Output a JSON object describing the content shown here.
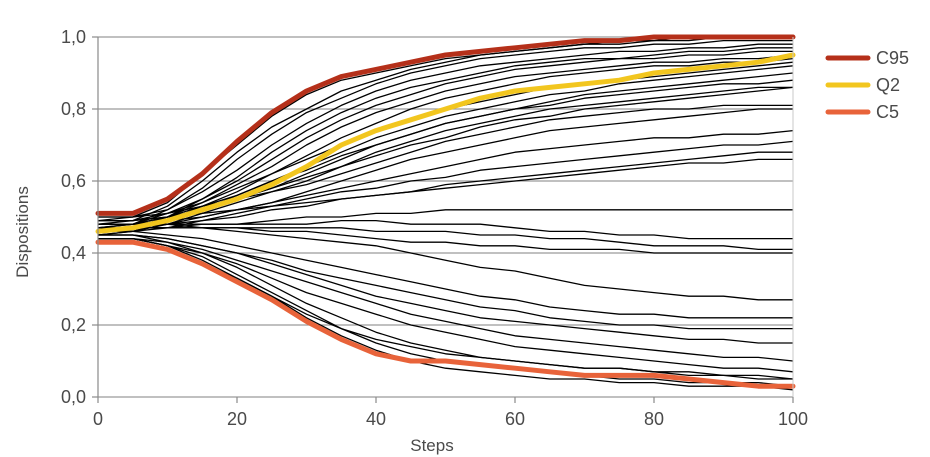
{
  "chart_data": {
    "type": "line",
    "xlabel": "Steps",
    "ylabel": "Dispositions",
    "xlim": [
      0,
      100
    ],
    "ylim": [
      0.0,
      1.0
    ],
    "x_ticks": [
      "0",
      "20",
      "40",
      "60",
      "80",
      "100"
    ],
    "y_ticks": [
      "0,0",
      "0,2",
      "0,4",
      "0,6",
      "0,8",
      "1,0"
    ],
    "grid": "horizontal",
    "legend_position": "right",
    "x": [
      0,
      5,
      10,
      15,
      20,
      25,
      30,
      35,
      40,
      45,
      50,
      55,
      60,
      65,
      70,
      75,
      80,
      85,
      90,
      95,
      100
    ],
    "series": [
      {
        "name": "C95",
        "color": "#b5301a",
        "values": [
          0.51,
          0.51,
          0.55,
          0.62,
          0.71,
          0.79,
          0.85,
          0.89,
          0.91,
          0.93,
          0.95,
          0.96,
          0.97,
          0.98,
          0.99,
          0.99,
          1.0,
          1.0,
          1.0,
          1.0,
          1.0
        ]
      },
      {
        "name": "Q2",
        "color": "#f2c61f",
        "values": [
          0.46,
          0.47,
          0.49,
          0.52,
          0.55,
          0.59,
          0.64,
          0.7,
          0.74,
          0.77,
          0.8,
          0.83,
          0.85,
          0.86,
          0.87,
          0.88,
          0.9,
          0.91,
          0.92,
          0.93,
          0.95
        ]
      },
      {
        "name": "C5",
        "color": "#e8633a",
        "values": [
          0.43,
          0.43,
          0.41,
          0.37,
          0.32,
          0.27,
          0.21,
          0.16,
          0.12,
          0.1,
          0.1,
          0.09,
          0.08,
          0.07,
          0.06,
          0.06,
          0.06,
          0.05,
          0.04,
          0.03,
          0.03
        ]
      },
      {
        "values": [
          0.5,
          0.5,
          0.54,
          0.62,
          0.7,
          0.78,
          0.84,
          0.88,
          0.9,
          0.92,
          0.94,
          0.95,
          0.96,
          0.97,
          0.98,
          0.99,
          0.99,
          1.0,
          1.0,
          1.0,
          1.0
        ]
      },
      {
        "values": [
          0.48,
          0.49,
          0.53,
          0.6,
          0.68,
          0.75,
          0.8,
          0.85,
          0.88,
          0.91,
          0.93,
          0.95,
          0.96,
          0.97,
          0.98,
          0.98,
          0.99,
          0.99,
          1.0,
          1.0,
          1.0
        ]
      },
      {
        "values": [
          0.47,
          0.48,
          0.52,
          0.58,
          0.66,
          0.73,
          0.79,
          0.83,
          0.87,
          0.9,
          0.92,
          0.94,
          0.95,
          0.96,
          0.97,
          0.97,
          0.98,
          0.98,
          0.99,
          0.99,
          0.99
        ]
      },
      {
        "values": [
          0.49,
          0.5,
          0.52,
          0.57,
          0.63,
          0.7,
          0.76,
          0.81,
          0.85,
          0.88,
          0.9,
          0.92,
          0.93,
          0.94,
          0.95,
          0.96,
          0.96,
          0.97,
          0.97,
          0.98,
          0.98
        ]
      },
      {
        "values": [
          0.46,
          0.47,
          0.5,
          0.55,
          0.61,
          0.68,
          0.74,
          0.79,
          0.83,
          0.86,
          0.88,
          0.9,
          0.92,
          0.93,
          0.94,
          0.94,
          0.95,
          0.96,
          0.96,
          0.97,
          0.97
        ]
      },
      {
        "values": [
          0.48,
          0.48,
          0.51,
          0.55,
          0.6,
          0.66,
          0.72,
          0.77,
          0.81,
          0.84,
          0.87,
          0.89,
          0.91,
          0.92,
          0.93,
          0.94,
          0.94,
          0.95,
          0.95,
          0.96,
          0.96
        ]
      },
      {
        "values": [
          0.47,
          0.48,
          0.5,
          0.54,
          0.59,
          0.64,
          0.7,
          0.75,
          0.79,
          0.82,
          0.85,
          0.87,
          0.89,
          0.9,
          0.91,
          0.92,
          0.93,
          0.93,
          0.94,
          0.94,
          0.95
        ]
      },
      {
        "values": [
          0.45,
          0.46,
          0.49,
          0.53,
          0.57,
          0.62,
          0.67,
          0.72,
          0.76,
          0.8,
          0.83,
          0.85,
          0.87,
          0.89,
          0.9,
          0.91,
          0.92,
          0.92,
          0.93,
          0.93,
          0.94
        ]
      },
      {
        "values": [
          0.49,
          0.49,
          0.51,
          0.54,
          0.58,
          0.62,
          0.66,
          0.7,
          0.74,
          0.77,
          0.8,
          0.82,
          0.84,
          0.86,
          0.87,
          0.88,
          0.89,
          0.9,
          0.91,
          0.92,
          0.93
        ]
      },
      {
        "values": [
          0.46,
          0.47,
          0.49,
          0.52,
          0.56,
          0.6,
          0.64,
          0.68,
          0.72,
          0.75,
          0.78,
          0.8,
          0.82,
          0.84,
          0.85,
          0.87,
          0.88,
          0.89,
          0.9,
          0.91,
          0.92
        ]
      },
      {
        "values": [
          0.48,
          0.48,
          0.5,
          0.53,
          0.56,
          0.6,
          0.63,
          0.67,
          0.7,
          0.73,
          0.76,
          0.78,
          0.8,
          0.82,
          0.84,
          0.85,
          0.86,
          0.87,
          0.88,
          0.89,
          0.9
        ]
      },
      {
        "values": [
          0.47,
          0.47,
          0.49,
          0.52,
          0.55,
          0.58,
          0.62,
          0.66,
          0.7,
          0.73,
          0.76,
          0.78,
          0.8,
          0.81,
          0.83,
          0.84,
          0.85,
          0.86,
          0.87,
          0.87,
          0.88
        ]
      },
      {
        "values": [
          0.45,
          0.46,
          0.48,
          0.51,
          0.54,
          0.57,
          0.6,
          0.64,
          0.68,
          0.71,
          0.74,
          0.76,
          0.78,
          0.8,
          0.81,
          0.82,
          0.83,
          0.84,
          0.85,
          0.86,
          0.86
        ]
      },
      {
        "values": [
          0.49,
          0.49,
          0.5,
          0.52,
          0.55,
          0.58,
          0.61,
          0.64,
          0.67,
          0.7,
          0.72,
          0.75,
          0.77,
          0.78,
          0.8,
          0.81,
          0.82,
          0.83,
          0.84,
          0.85,
          0.86
        ]
      },
      {
        "values": [
          0.5,
          0.5,
          0.51,
          0.53,
          0.55,
          0.57,
          0.59,
          0.62,
          0.65,
          0.68,
          0.71,
          0.73,
          0.75,
          0.77,
          0.78,
          0.79,
          0.8,
          0.8,
          0.81,
          0.81,
          0.81
        ]
      },
      {
        "values": [
          0.47,
          0.47,
          0.48,
          0.5,
          0.52,
          0.54,
          0.57,
          0.6,
          0.63,
          0.66,
          0.68,
          0.7,
          0.72,
          0.74,
          0.75,
          0.76,
          0.77,
          0.78,
          0.79,
          0.8,
          0.8
        ]
      },
      {
        "values": [
          0.48,
          0.48,
          0.49,
          0.5,
          0.52,
          0.54,
          0.56,
          0.58,
          0.6,
          0.62,
          0.64,
          0.66,
          0.68,
          0.69,
          0.7,
          0.71,
          0.72,
          0.72,
          0.73,
          0.73,
          0.74
        ]
      },
      {
        "values": [
          0.46,
          0.46,
          0.47,
          0.49,
          0.51,
          0.53,
          0.55,
          0.57,
          0.58,
          0.6,
          0.61,
          0.63,
          0.64,
          0.65,
          0.66,
          0.67,
          0.68,
          0.69,
          0.7,
          0.7,
          0.71
        ]
      },
      {
        "values": [
          0.47,
          0.47,
          0.48,
          0.49,
          0.5,
          0.52,
          0.53,
          0.55,
          0.56,
          0.57,
          0.59,
          0.6,
          0.61,
          0.62,
          0.63,
          0.64,
          0.65,
          0.66,
          0.67,
          0.68,
          0.68
        ]
      },
      {
        "values": [
          0.49,
          0.49,
          0.5,
          0.51,
          0.52,
          0.53,
          0.54,
          0.55,
          0.56,
          0.57,
          0.58,
          0.59,
          0.6,
          0.61,
          0.62,
          0.63,
          0.64,
          0.65,
          0.65,
          0.66,
          0.66
        ]
      },
      {
        "values": [
          0.47,
          0.47,
          0.47,
          0.48,
          0.48,
          0.49,
          0.5,
          0.5,
          0.51,
          0.51,
          0.52,
          0.52,
          0.52,
          0.52,
          0.52,
          0.52,
          0.52,
          0.52,
          0.52,
          0.52,
          0.52
        ]
      },
      {
        "values": [
          0.48,
          0.48,
          0.48,
          0.48,
          0.48,
          0.48,
          0.48,
          0.49,
          0.49,
          0.48,
          0.48,
          0.48,
          0.47,
          0.46,
          0.46,
          0.45,
          0.45,
          0.44,
          0.44,
          0.44,
          0.44
        ]
      },
      {
        "values": [
          0.47,
          0.47,
          0.47,
          0.47,
          0.47,
          0.47,
          0.47,
          0.47,
          0.46,
          0.46,
          0.46,
          0.45,
          0.45,
          0.44,
          0.44,
          0.43,
          0.42,
          0.42,
          0.42,
          0.41,
          0.41
        ]
      },
      {
        "values": [
          0.48,
          0.48,
          0.48,
          0.47,
          0.47,
          0.46,
          0.46,
          0.45,
          0.44,
          0.43,
          0.43,
          0.42,
          0.42,
          0.41,
          0.41,
          0.41,
          0.4,
          0.4,
          0.4,
          0.4,
          0.4
        ]
      },
      {
        "values": [
          0.47,
          0.47,
          0.47,
          0.47,
          0.46,
          0.45,
          0.44,
          0.43,
          0.42,
          0.4,
          0.38,
          0.36,
          0.35,
          0.33,
          0.31,
          0.3,
          0.29,
          0.28,
          0.28,
          0.27,
          0.27
        ]
      },
      {
        "values": [
          0.46,
          0.46,
          0.45,
          0.44,
          0.42,
          0.4,
          0.38,
          0.36,
          0.34,
          0.32,
          0.3,
          0.28,
          0.27,
          0.25,
          0.24,
          0.23,
          0.23,
          0.22,
          0.22,
          0.22,
          0.22
        ]
      },
      {
        "values": [
          0.45,
          0.45,
          0.44,
          0.42,
          0.4,
          0.38,
          0.35,
          0.33,
          0.31,
          0.29,
          0.27,
          0.25,
          0.24,
          0.22,
          0.21,
          0.2,
          0.2,
          0.19,
          0.19,
          0.19,
          0.19
        ]
      },
      {
        "values": [
          0.45,
          0.45,
          0.44,
          0.42,
          0.4,
          0.37,
          0.34,
          0.31,
          0.28,
          0.26,
          0.24,
          0.22,
          0.21,
          0.2,
          0.19,
          0.18,
          0.17,
          0.16,
          0.16,
          0.15,
          0.15
        ]
      },
      {
        "values": [
          0.44,
          0.44,
          0.43,
          0.41,
          0.38,
          0.35,
          0.32,
          0.29,
          0.26,
          0.23,
          0.21,
          0.19,
          0.17,
          0.16,
          0.15,
          0.14,
          0.13,
          0.12,
          0.11,
          0.11,
          0.1
        ]
      },
      {
        "values": [
          0.44,
          0.44,
          0.42,
          0.4,
          0.37,
          0.33,
          0.29,
          0.26,
          0.23,
          0.2,
          0.18,
          0.16,
          0.14,
          0.13,
          0.12,
          0.11,
          0.1,
          0.09,
          0.08,
          0.08,
          0.07
        ]
      },
      {
        "values": [
          0.45,
          0.45,
          0.43,
          0.4,
          0.36,
          0.31,
          0.26,
          0.22,
          0.18,
          0.15,
          0.13,
          0.11,
          0.1,
          0.09,
          0.08,
          0.08,
          0.07,
          0.06,
          0.06,
          0.05,
          0.05
        ]
      },
      {
        "values": [
          0.44,
          0.44,
          0.42,
          0.39,
          0.34,
          0.29,
          0.24,
          0.19,
          0.15,
          0.12,
          0.1,
          0.09,
          0.08,
          0.07,
          0.06,
          0.05,
          0.05,
          0.04,
          0.04,
          0.04,
          0.03
        ]
      },
      {
        "values": [
          0.43,
          0.43,
          0.41,
          0.37,
          0.33,
          0.28,
          0.22,
          0.17,
          0.13,
          0.1,
          0.08,
          0.07,
          0.06,
          0.05,
          0.05,
          0.04,
          0.04,
          0.03,
          0.03,
          0.03,
          0.02
        ]
      },
      {
        "values": [
          0.44,
          0.44,
          0.42,
          0.38,
          0.33,
          0.28,
          0.23,
          0.19,
          0.16,
          0.14,
          0.12,
          0.11,
          0.1,
          0.09,
          0.08,
          0.08,
          0.07,
          0.07,
          0.06,
          0.06,
          0.05
        ]
      }
    ]
  }
}
